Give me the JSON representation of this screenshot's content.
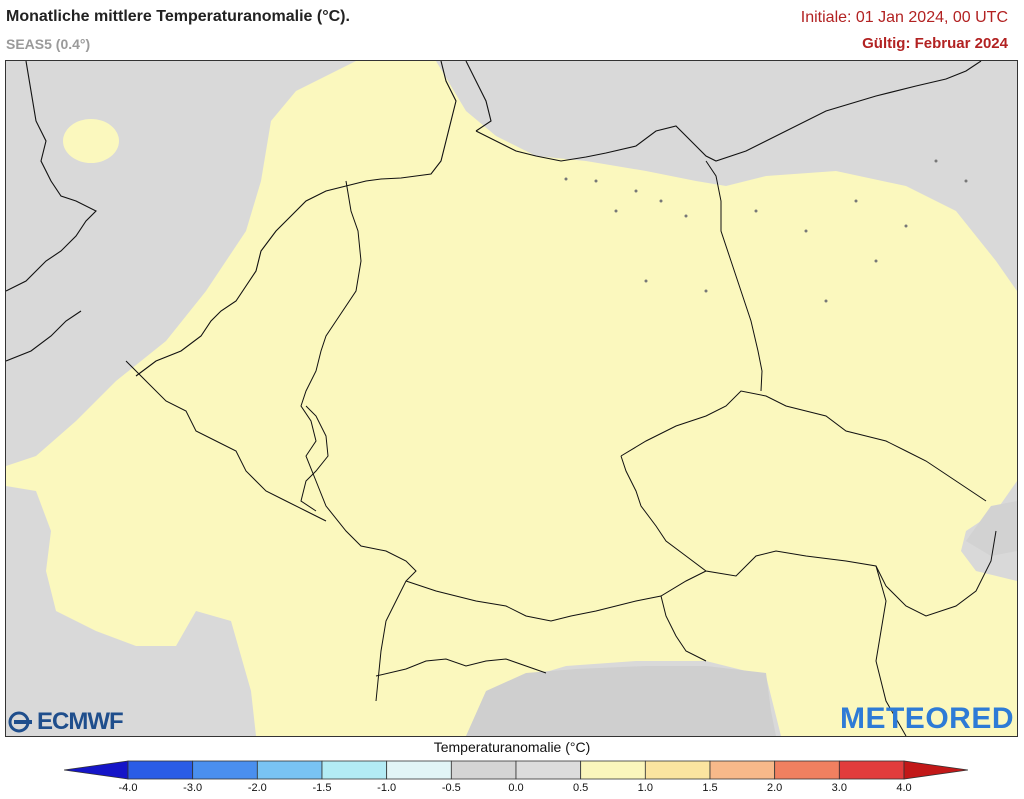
{
  "header": {
    "title": "Monatliche mittlere Temperaturanomalie (°C).",
    "subtitle": "SEAS5 (0.4°)",
    "init": "Initiale: 01 Jan 2024, 00 UTC",
    "valid": "Gültig: Februar 2024"
  },
  "logos": {
    "left": "ECMWF",
    "right": "METEORED"
  },
  "legend": {
    "title": "Temperaturanomalie (°C)",
    "ticks": [
      "-4.0",
      "-3.0",
      "-2.0",
      "-1.5",
      "-1.0",
      "-0.5",
      "0.0",
      "0.5",
      "1.0",
      "1.5",
      "2.0",
      "3.0",
      "4.0"
    ],
    "colors": [
      "#1515c8",
      "#2a5ce6",
      "#4a8fef",
      "#79c3f3",
      "#b3ecf5",
      "#e2f5f6",
      "#d4d4d4",
      "#dcdcdc",
      "#fbf6bc",
      "#fbe4a0",
      "#f7b98a",
      "#f08060",
      "#e23c3c",
      "#c21818"
    ]
  },
  "colors": {
    "positive_anomaly": "#fbf8be",
    "neutral": "#d9d9d9",
    "border": "#000000"
  }
}
